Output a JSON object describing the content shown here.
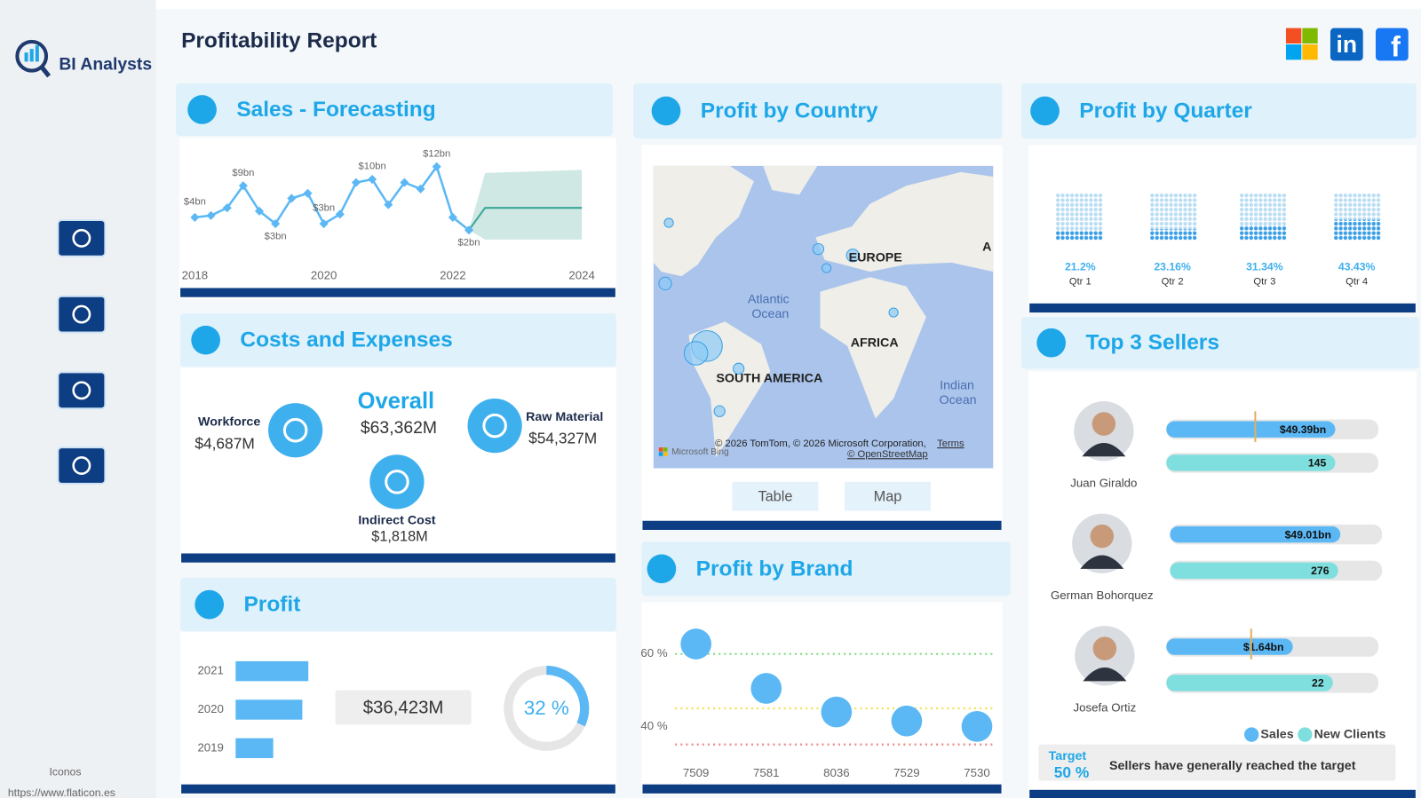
{
  "header": {
    "title": "Profitability Report",
    "logo": "BI Analysts",
    "linkedin": "in",
    "facebook": "f"
  },
  "sidebar": {
    "credit": "Iconos",
    "credit_url": "https://www.flaticon.es"
  },
  "panels": {
    "sales": "Sales - Forecasting",
    "costs": "Costs and Expenses",
    "profit": "Profit",
    "country": "Profit by Country",
    "brand": "Profit by Brand",
    "quarter": "Profit by Quarter",
    "sellers": "Top 3 Sellers"
  },
  "costs": {
    "overall_label": "Overall",
    "overall": "$63,362M",
    "workforce_label": "Workforce",
    "workforce": "$4,687M",
    "raw_label": "Raw Material",
    "raw": "$54,327M",
    "indirect_label": "Indirect Cost",
    "indirect": "$1,818M"
  },
  "profit": {
    "total": "$36,423M"
  },
  "map": {
    "labels": [
      "Atlantic",
      "Ocean",
      "EUROPE",
      "AFRICA",
      "SOUTH AMERICA",
      "Indian",
      "Ocean",
      "A"
    ],
    "copyright": "© 2026 TomTom, © 2026 Microsoft Corporation,",
    "terms": "Terms",
    "osm": "© OpenStreetMap",
    "bing": "Microsoft Bing",
    "buttons": [
      "Table",
      "Map"
    ]
  },
  "target": {
    "label": "Target",
    "value": "50 %",
    "message": "Sellers have generally reached the target"
  },
  "chart_data": [
    {
      "type": "line",
      "x": [
        2018,
        2018.25,
        2018.5,
        2018.75,
        2019,
        2019.25,
        2019.5,
        2019.75,
        2020,
        2020.25,
        2020.5,
        2020.75,
        2021,
        2021.25,
        2021.5,
        2021.75,
        2022,
        2022.25
      ],
      "values": [
        4,
        4.3,
        5.5,
        9,
        5,
        3,
        7,
        7.8,
        3,
        4.5,
        9.5,
        10,
        6,
        9.5,
        8.5,
        12,
        4,
        2
      ],
      "value_labels": [
        "$4bn",
        null,
        null,
        "$9bn",
        null,
        "$3bn",
        null,
        null,
        "$3bn",
        null,
        null,
        "$10bn",
        null,
        null,
        null,
        "$12bn",
        null,
        "$2bn"
      ],
      "color": "#5bb8f5",
      "xlim": [
        2018,
        2024
      ],
      "xticks": [
        2018,
        2020,
        2022,
        2024
      ],
      "ylim": [
        0,
        14
      ],
      "forecast": {
        "x": [
          2022.25,
          2022.5,
          2024
        ],
        "values": [
          2,
          5.5,
          5.5
        ],
        "upper": [
          2,
          11,
          11.5
        ],
        "lower": [
          2,
          0.5,
          0.5
        ],
        "color": "#3aa79a",
        "band_color": "#cfe8e4"
      }
    },
    {
      "type": "hbar",
      "categories": [
        "2021",
        "2020",
        "2019"
      ],
      "values": [
        14.5,
        13.3,
        7.5
      ],
      "xlim": [
        0,
        15
      ],
      "color": "#5bb8f5"
    },
    {
      "type": "donut",
      "values": [
        32
      ],
      "value_labels": [
        "32 %"
      ],
      "ylim": [
        0,
        100
      ],
      "color": "#5bb8f5",
      "track_color": "#e6e6e6"
    },
    {
      "type": "bubble",
      "categories": [
        "7509",
        "7581",
        "8036",
        "7529",
        "7530"
      ],
      "values": [
        62.75,
        50.5,
        44,
        41.5,
        40
      ],
      "ylim": [
        28,
        68
      ],
      "yticks": [
        {
          "value": 40,
          "label": "40 %"
        },
        {
          "value": 60,
          "label": "60 %"
        }
      ],
      "color": "#5bb8f5",
      "reference_lines": [
        {
          "value": 60,
          "color": "#8fe08f"
        },
        {
          "value": 45,
          "color": "#f2e35c"
        },
        {
          "value": 35,
          "color": "#f09090"
        }
      ]
    },
    {
      "type": "waffle",
      "categories": [
        "Qtr 1",
        "Qtr 2",
        "Qtr 3",
        "Qtr 4"
      ],
      "values": [
        21.2,
        23.16,
        31.34,
        43.43
      ],
      "value_labels": [
        "21.2%",
        "23.16%",
        "31.34%",
        "43.43%"
      ],
      "ylim": [
        0,
        100
      ],
      "color": "#3b9fe6",
      "track_color": "#b9ddf3"
    },
    {
      "type": "bullet",
      "categories": [
        "Juan Giraldo",
        "German Bohorquez",
        "Josefa Ortiz"
      ],
      "series": [
        {
          "name": "Sales",
          "color": "#5bb8f5",
          "values": [
            49.39,
            49.01,
            1.64
          ],
          "value_labels": [
            "$49.39bn",
            "$49.01bn",
            "$1.64bn"
          ],
          "limits": [
            62,
            61,
            2.75
          ],
          "targets": [
            26,
            null,
            1.1
          ]
        },
        {
          "name": "New Clients",
          "color": "#7fdede",
          "values": [
            145,
            276,
            22
          ],
          "limits": [
            182,
            348,
            28
          ]
        }
      ]
    }
  ]
}
